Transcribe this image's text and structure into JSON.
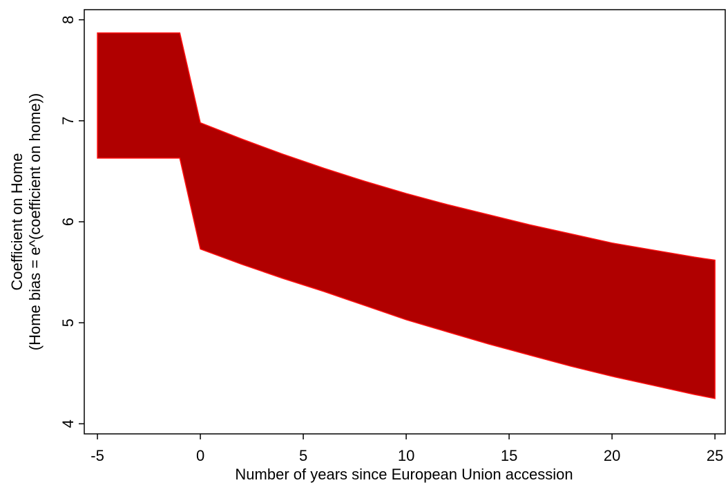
{
  "chart_data": {
    "type": "rangearea",
    "xlabel": "Number of years since European Union accession",
    "ylabel": [
      "Coefficient on Home",
      "(Home bias = e^(coefficient on home))"
    ],
    "x": [
      -5,
      -1,
      0,
      2,
      4,
      6,
      8,
      10,
      12,
      14,
      16,
      18,
      20,
      22,
      24,
      25
    ],
    "upper": [
      7.87,
      7.87,
      6.98,
      6.82,
      6.67,
      6.53,
      6.4,
      6.28,
      6.17,
      6.07,
      5.97,
      5.88,
      5.79,
      5.72,
      5.65,
      5.62
    ],
    "lower": [
      6.63,
      6.63,
      5.73,
      5.58,
      5.44,
      5.31,
      5.17,
      5.03,
      4.91,
      4.79,
      4.68,
      4.57,
      4.47,
      4.38,
      4.29,
      4.25
    ],
    "color": "#b00000",
    "edge_color": "#ff1010",
    "xlim": [
      -5.64,
      25.5
    ],
    "ylim": [
      3.9,
      8.1
    ],
    "xticks": [
      -5,
      0,
      5,
      10,
      15,
      20,
      25
    ],
    "yticks": [
      4,
      5,
      6,
      7,
      8
    ]
  }
}
